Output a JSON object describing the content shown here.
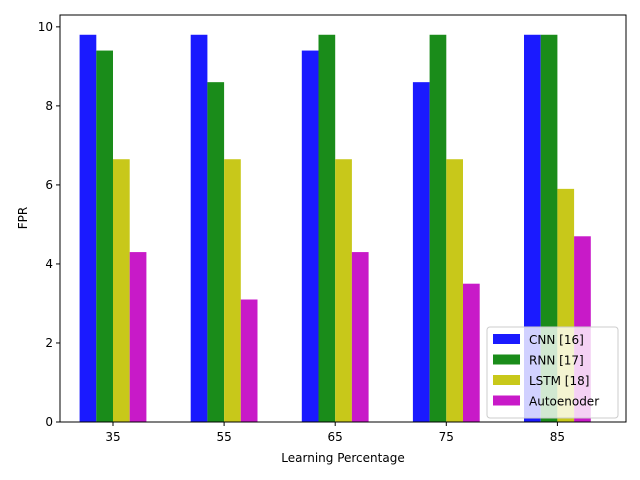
{
  "chart_data": {
    "type": "bar",
    "xlabel": "Learning Percentage",
    "ylabel": "FPR",
    "categories": [
      "35",
      "55",
      "65",
      "75",
      "85"
    ],
    "ylim": [
      0,
      10.3
    ],
    "yticks": [
      0,
      2,
      4,
      6,
      8,
      10
    ],
    "legend_position": "lower-right",
    "grid": false,
    "series": [
      {
        "name": "CNN [16]",
        "color": "#1a1aff",
        "values": [
          9.8,
          9.8,
          9.4,
          8.6,
          9.8
        ]
      },
      {
        "name": "RNN [17]",
        "color": "#1a8c1a",
        "values": [
          9.4,
          8.6,
          9.8,
          9.8,
          9.8
        ]
      },
      {
        "name": "LSTM [18]",
        "color": "#c8c81a",
        "values": [
          6.65,
          6.65,
          6.65,
          6.65,
          5.9
        ]
      },
      {
        "name": "Autoenoder",
        "color": "#c81ac8",
        "values": [
          4.3,
          3.1,
          4.3,
          3.5,
          4.7
        ]
      }
    ]
  }
}
